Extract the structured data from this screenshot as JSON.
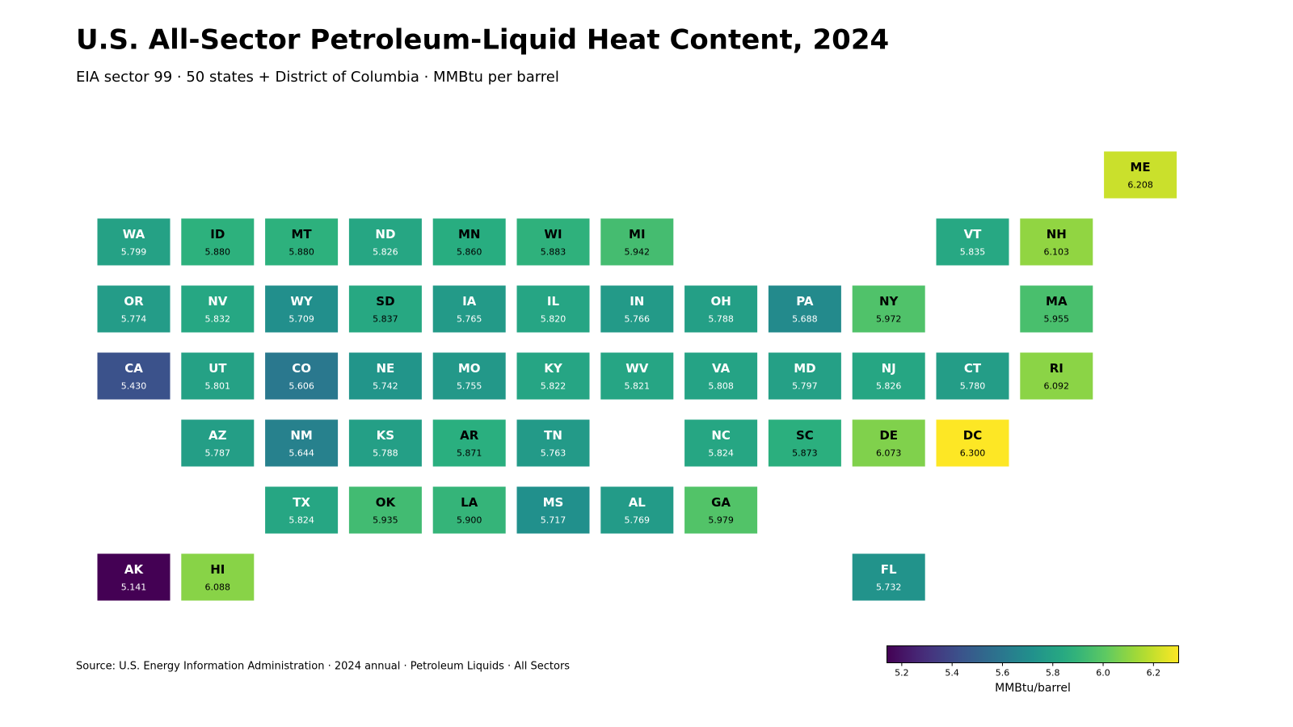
{
  "chart_data": {
    "type": "tilemap",
    "title": "U.S. All-Sector Petroleum-Liquid Heat Content, 2024",
    "subtitle": "EIA sector 99 · 50 states + District of Columbia · MMBtu per barrel",
    "source": "Source: U.S. Energy Information Administration · 2024 annual · Petroleum Liquids · All Sectors",
    "colormap": "viridis",
    "colorbar_label": "MMBtu/barrel",
    "clim": [
      5.141,
      6.3
    ],
    "cticks": [
      5.2,
      5.4,
      5.6,
      5.8,
      {
        "value": 6,
        "label": "6.0"
      },
      6.2
    ],
    "categories": [
      "ME",
      "WA",
      "ID",
      "MT",
      "ND",
      "MN",
      "WI",
      "MI",
      "VT",
      "NH",
      "OR",
      "NV",
      "WY",
      "SD",
      "IA",
      "IL",
      "IN",
      "OH",
      "PA",
      "NY",
      "MA",
      "CA",
      "UT",
      "CO",
      "NE",
      "MO",
      "KY",
      "WV",
      "VA",
      "MD",
      "NJ",
      "CT",
      "RI",
      "AZ",
      "NM",
      "KS",
      "AR",
      "TN",
      "NC",
      "SC",
      "DE",
      "DC",
      "TX",
      "OK",
      "LA",
      "MS",
      "AL",
      "GA",
      "AK",
      "HI",
      "FL"
    ],
    "values": [
      6.208,
      5.799,
      5.88,
      5.88,
      5.826,
      5.86,
      5.883,
      5.942,
      5.835,
      6.103,
      5.774,
      5.832,
      5.709,
      5.837,
      5.765,
      5.82,
      5.766,
      5.788,
      5.688,
      5.972,
      5.955,
      5.43,
      5.801,
      5.606,
      5.742,
      5.755,
      5.822,
      5.821,
      5.808,
      5.797,
      5.826,
      5.78,
      6.092,
      5.787,
      5.644,
      5.788,
      5.871,
      5.763,
      5.824,
      5.873,
      6.073,
      6.3,
      5.824,
      5.935,
      5.9,
      5.717,
      5.769,
      5.979,
      5.141,
      6.088,
      5.732
    ],
    "value_labels": [
      "6.208",
      "5.799",
      "5.880",
      "5.880",
      "5.826",
      "5.860",
      "5.883",
      "5.942",
      "5.835",
      "6.103",
      "5.774",
      "5.832",
      "5.709",
      "5.837",
      "5.765",
      "5.820",
      "5.766",
      "5.788",
      "5.688",
      "5.972",
      "5.955",
      "5.430",
      "5.801",
      "5.606",
      "5.742",
      "5.755",
      "5.822",
      "5.821",
      "5.808",
      "5.797",
      "5.826",
      "5.780",
      "6.092",
      "5.787",
      "5.644",
      "5.788",
      "5.871",
      "5.763",
      "5.824",
      "5.873",
      "6.073",
      "6.300",
      "5.824",
      "5.935",
      "5.900",
      "5.717",
      "5.769",
      "5.979",
      "5.141",
      "6.088",
      "5.732"
    ]
  }
}
